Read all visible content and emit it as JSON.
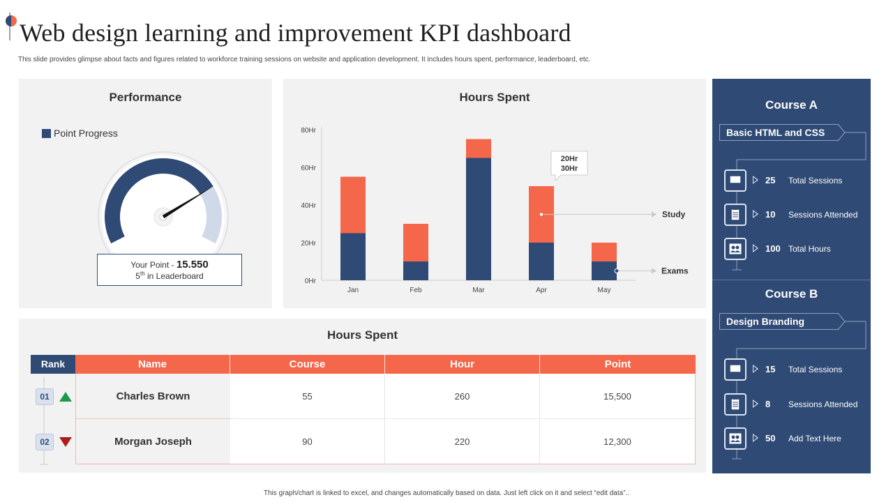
{
  "header": {
    "title": "Web design learning and improvement KPI dashboard",
    "subtitle": "This slide provides glimpse about facts and figures related to workforce training sessions on website and application development. It includes hours spent, performance, leaderboard, etc."
  },
  "colors": {
    "navy": "#2f4a74",
    "coral": "#f4674a",
    "light_panel": "#f2f2f2",
    "gauge_light": "#cfd9e8"
  },
  "performance": {
    "title": "Performance",
    "legend_label": "Point Progress",
    "gauge_fill_fraction": 0.75,
    "your_point_label": "Your Point - ",
    "your_point_value": "15.550",
    "rank_number": "5",
    "rank_suffix": "th",
    "rank_text": " in Leaderboard"
  },
  "chart_data": {
    "type": "bar",
    "title": "Hours Spent",
    "stacked": true,
    "categories": [
      "Jan",
      "Feb",
      "Mar",
      "Apr",
      "May"
    ],
    "series": [
      {
        "name": "Exams",
        "values": [
          25,
          10,
          65,
          20,
          10
        ],
        "color": "#2f4a74"
      },
      {
        "name": "Study",
        "values": [
          30,
          20,
          10,
          30,
          10
        ],
        "color": "#f4674a"
      }
    ],
    "ylim": [
      0,
      80
    ],
    "yticks": [
      "0Hr",
      "20Hr",
      "40Hr",
      "60Hr",
      "80Hr"
    ],
    "ytick_values": [
      0,
      20,
      40,
      60,
      80
    ],
    "callout": {
      "category": "Apr",
      "line1": "20Hr",
      "line2": "30Hr"
    },
    "series_labels_placement": "right"
  },
  "leaderboard": {
    "title": "Hours Spent",
    "rank_header": "Rank",
    "columns": [
      "Name",
      "Course",
      "Hour",
      "Point"
    ],
    "rows": [
      {
        "rank": "01",
        "trend": "up",
        "name": "Charles Brown",
        "course": "55",
        "hour": "260",
        "point": "15,500"
      },
      {
        "rank": "02",
        "trend": "down",
        "name": "Morgan Joseph",
        "course": "90",
        "hour": "220",
        "point": "12,300"
      }
    ]
  },
  "courses": [
    {
      "title": "Course A",
      "tag": "Basic HTML and CSS",
      "stats": [
        {
          "icon": "monitor-icon",
          "value": "25",
          "label": "Total Sessions"
        },
        {
          "icon": "clipboard-icon",
          "value": "10",
          "label": "Sessions Attended"
        },
        {
          "icon": "users-icon",
          "value": "100",
          "label": "Total Hours"
        }
      ]
    },
    {
      "title": "Course B",
      "tag": "Design Branding",
      "stats": [
        {
          "icon": "monitor-icon",
          "value": "15",
          "label": "Total Sessions"
        },
        {
          "icon": "clipboard-icon",
          "value": "8",
          "label": "Sessions Attended"
        },
        {
          "icon": "users-icon",
          "value": "50",
          "label": "Add Text Here"
        }
      ]
    }
  ],
  "footer": "This graph/chart is linked to excel, and changes automatically based on data. Just left click on it and select “edit data”.."
}
